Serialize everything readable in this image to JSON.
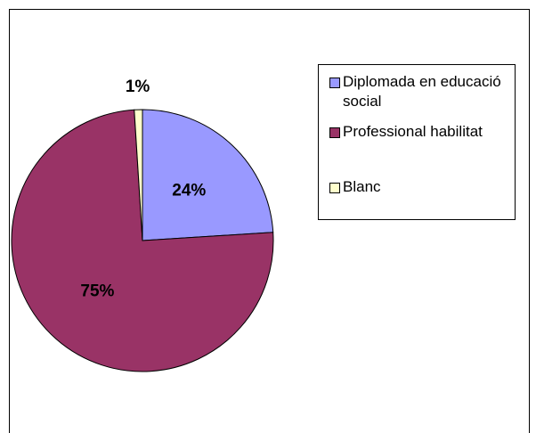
{
  "chart_data": {
    "type": "pie",
    "categories": [
      "Diplomada en educació social",
      "Professional habilitat",
      "Blanc"
    ],
    "values": [
      24,
      75,
      1
    ],
    "value_labels": [
      "24%",
      "75%",
      "1%"
    ],
    "colors": [
      "#9999ff",
      "#993366",
      "#ffffcc"
    ],
    "legend": "right"
  }
}
